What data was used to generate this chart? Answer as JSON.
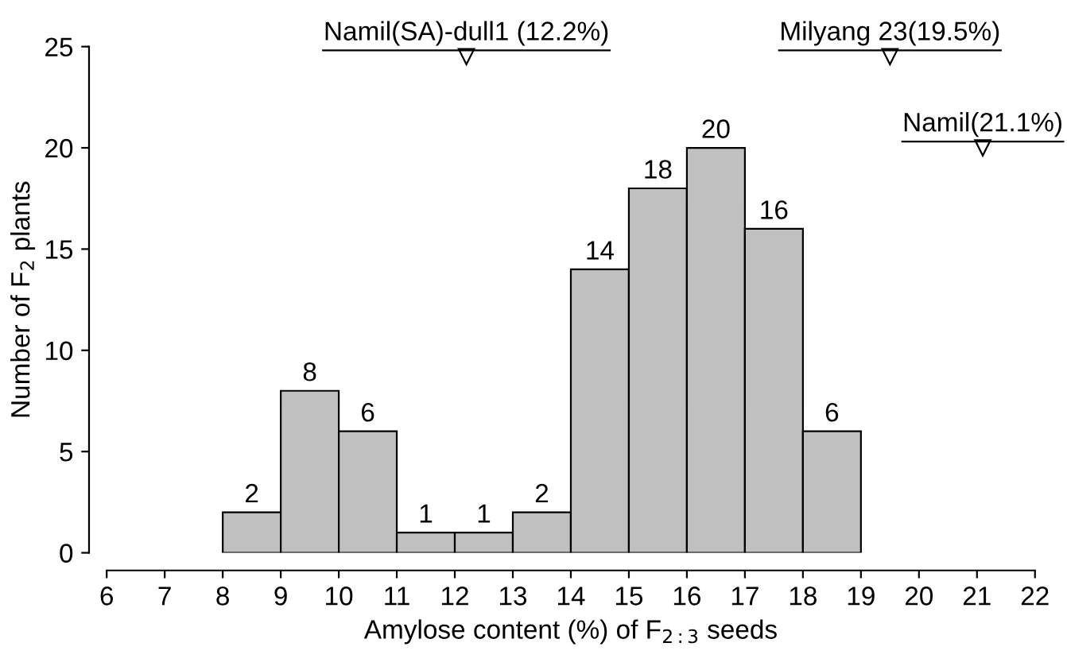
{
  "chart_data": {
    "type": "histogram",
    "xlabel": "Amylose content (%) of F$_{2:3}$ seeds",
    "ylabel": "Number of F$_{2}$ plants",
    "bins": [
      8,
      9,
      10,
      11,
      12,
      13,
      14,
      15,
      16,
      17,
      18,
      19
    ],
    "values": [
      2,
      8,
      6,
      1,
      1,
      2,
      14,
      18,
      20,
      16,
      6
    ],
    "color": "#c0c0c0",
    "data_labels": true,
    "xlim": [
      6,
      22
    ],
    "xticks": [
      6,
      7,
      8,
      9,
      10,
      11,
      12,
      13,
      14,
      15,
      16,
      17,
      18,
      19,
      20,
      21,
      22
    ],
    "ylim": [
      0,
      25
    ],
    "yticks": [
      0,
      5,
      10,
      15,
      20,
      25
    ],
    "grid": false,
    "legend": false,
    "annotations": [
      {
        "text": "Namil(SA)-dull1 (12.2%)",
        "x": 12.2,
        "y": 24.5
      },
      {
        "text": "Milyang 23(19.5%)",
        "x": 19.5,
        "y": 24.5
      },
      {
        "text": "Namil(21.1%)",
        "x": 21.1,
        "y": 20
      }
    ]
  }
}
